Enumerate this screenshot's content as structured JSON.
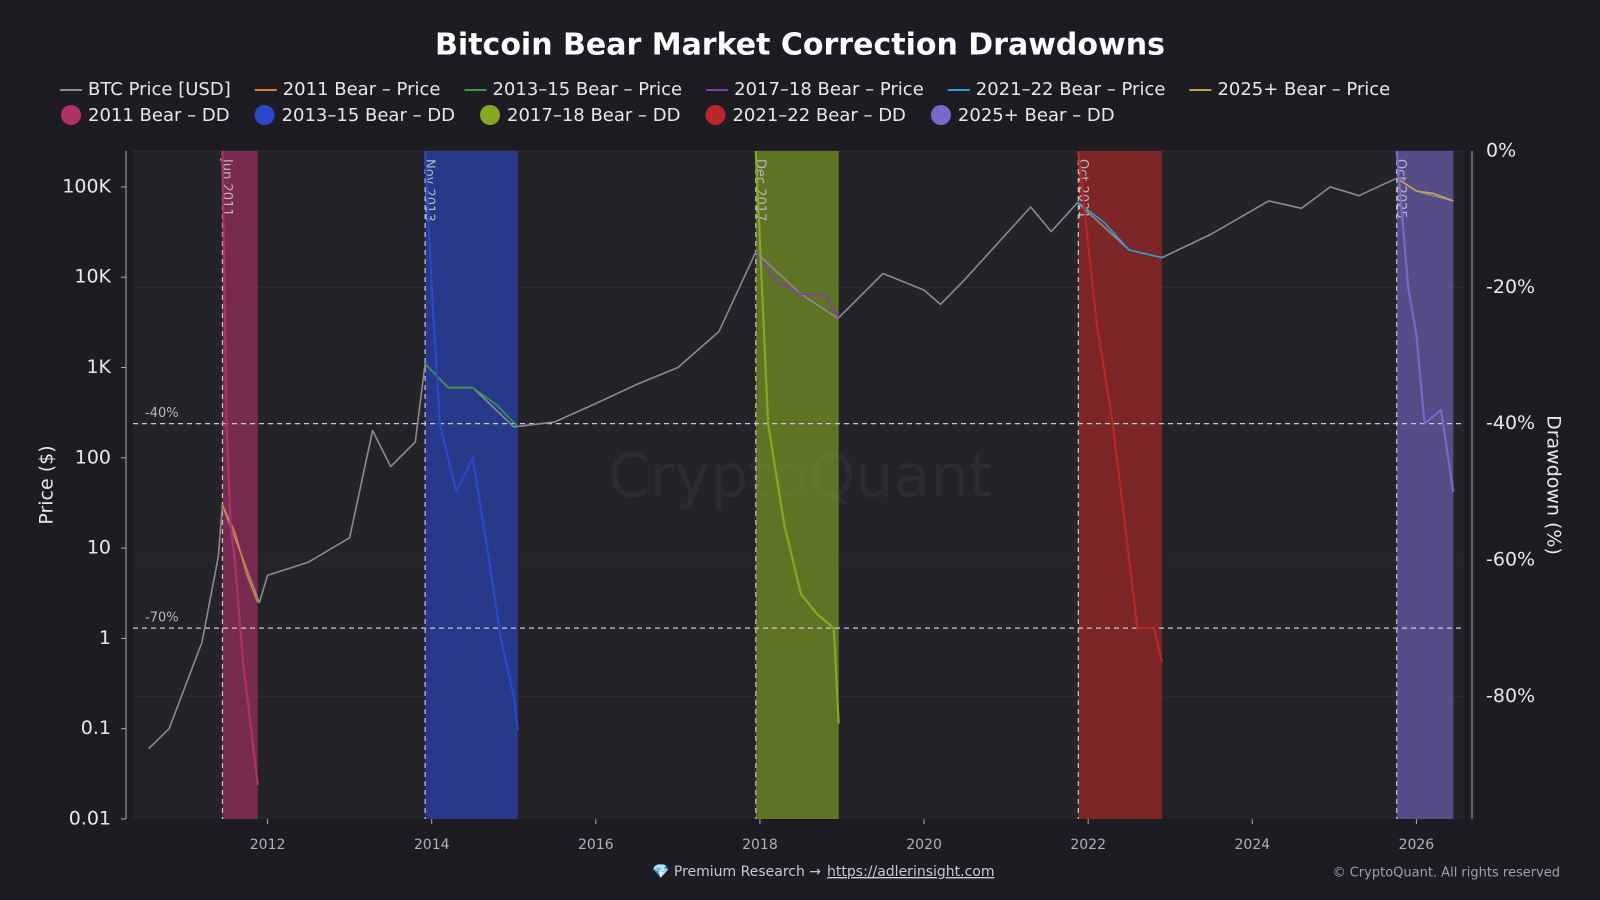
{
  "chart_data": {
    "type": "line",
    "title": "Bitcoin Bear Market Correction Drawdowns",
    "ylabel": "Price ($)",
    "y2label": "Drawdown (%)",
    "log_y": true,
    "grid": true,
    "legend": "top",
    "watermark": "CryptoQuant",
    "xlim": [
      2010.36,
      2026.58
    ],
    "xticks": [
      2012,
      2014,
      2016,
      2018,
      2020,
      2022,
      2024,
      2026
    ],
    "ylim": [
      0.01,
      250000
    ],
    "yticks": [
      {
        "value": 100000,
        "label": "100K"
      },
      {
        "value": 10000,
        "label": "10K"
      },
      {
        "value": 1000,
        "label": "1K"
      },
      100,
      10,
      1,
      0.1,
      0.01
    ],
    "y2lim": [
      -98,
      0
    ],
    "y2ticks": [
      {
        "value": 0,
        "label": "0%"
      },
      {
        "value": -20,
        "label": "-20%"
      },
      {
        "value": -40,
        "label": "-40%"
      },
      {
        "value": -60,
        "label": "-60%"
      },
      {
        "value": -80,
        "label": "-80%"
      }
    ],
    "annotations": [
      {
        "text": "Jun 2011",
        "x": 2011.45
      },
      {
        "text": "Nov 2013",
        "x": 2013.92
      },
      {
        "text": "Dec 2017",
        "x": 2017.95
      },
      {
        "text": "Oct 2021",
        "x": 2021.88
      },
      {
        "text": "Oct 2025",
        "x": 2025.76
      }
    ],
    "hlines": [
      {
        "text": "-40%",
        "value": -40
      },
      {
        "text": "-70%",
        "value": -70
      }
    ],
    "series": [
      {
        "name": "BTC Price [USD]",
        "color": "#8a8a92",
        "x": [
          2010.55,
          2010.8,
          2011.0,
          2011.2,
          2011.4,
          2011.45,
          2011.9,
          2012.0,
          2012.5,
          2013.0,
          2013.28,
          2013.5,
          2013.8,
          2013.92,
          2014.2,
          2014.5,
          2015.0,
          2015.5,
          2016.0,
          2016.5,
          2017.0,
          2017.5,
          2017.95,
          2018.5,
          2018.95,
          2019.5,
          2020.0,
          2020.2,
          2020.5,
          2021.0,
          2021.3,
          2021.55,
          2021.87,
          2022.5,
          2022.9,
          2023.5,
          2024.2,
          2024.6,
          2024.95,
          2025.3,
          2025.76,
          2026.0,
          2026.45
        ],
        "values": [
          0.06,
          0.1,
          0.3,
          0.9,
          8,
          30,
          2.5,
          5,
          7,
          13,
          200,
          80,
          150,
          1100,
          600,
          600,
          220,
          250,
          400,
          650,
          1000,
          2500,
          19000,
          6500,
          3500,
          11000,
          7200,
          5000,
          9500,
          30000,
          60000,
          32000,
          67000,
          20000,
          16500,
          30000,
          70000,
          58000,
          100000,
          80000,
          125000,
          90000,
          70000
        ]
      },
      {
        "name": "2011 Bear – Price",
        "color": "#e07b39",
        "x": [
          2011.45,
          2011.6,
          2011.75,
          2011.88
        ],
        "values": [
          30,
          15,
          5,
          2.5
        ]
      },
      {
        "name": "2013–15 Bear – Price",
        "color": "#3a9a4a",
        "x": [
          2013.92,
          2014.2,
          2014.5,
          2014.8,
          2015.05
        ],
        "values": [
          1100,
          600,
          600,
          380,
          220
        ]
      },
      {
        "name": "2017–18 Bear – Price",
        "color": "#8a3ab0",
        "x": [
          2017.95,
          2018.2,
          2018.5,
          2018.8,
          2018.96
        ],
        "values": [
          19000,
          9000,
          6500,
          6300,
          3500
        ]
      },
      {
        "name": "2021–22 Bear – Price",
        "color": "#2a9fd0",
        "x": [
          2021.88,
          2022.2,
          2022.5,
          2022.9
        ],
        "values": [
          67000,
          40000,
          20000,
          16500
        ]
      },
      {
        "name": "2025+ Bear – Price",
        "color": "#c8a050",
        "x": [
          2025.76,
          2026.0,
          2026.2,
          2026.45
        ],
        "values": [
          125000,
          90000,
          85000,
          70000
        ]
      },
      {
        "name": "2011 Bear – DD",
        "color": "#b0306a",
        "axis": "y2",
        "x": [
          2011.45,
          2011.5,
          2011.55,
          2011.6,
          2011.7,
          2011.8,
          2011.88
        ],
        "values": [
          0,
          -40,
          -55,
          -60,
          -75,
          -85,
          -93
        ]
      },
      {
        "name": "2013–15 Bear – DD",
        "color": "#2a48c8",
        "axis": "y2",
        "x": [
          2013.92,
          2014.0,
          2014.1,
          2014.3,
          2014.5,
          2014.7,
          2014.85,
          2015.0,
          2015.05
        ],
        "values": [
          0,
          -20,
          -40,
          -50,
          -45,
          -60,
          -72,
          -80,
          -85
        ]
      },
      {
        "name": "2017–18 Bear – DD",
        "color": "#86a822",
        "axis": "y2",
        "x": [
          2017.95,
          2018.1,
          2018.3,
          2018.5,
          2018.7,
          2018.9,
          2018.96
        ],
        "values": [
          0,
          -40,
          -55,
          -65,
          -68,
          -70,
          -84
        ]
      },
      {
        "name": "2021–22 Bear – DD",
        "color": "#b82828",
        "axis": "y2",
        "x": [
          2021.88,
          2022.1,
          2022.3,
          2022.45,
          2022.6,
          2022.8,
          2022.9
        ],
        "values": [
          0,
          -25,
          -40,
          -55,
          -70,
          -70,
          -75
        ]
      },
      {
        "name": "2025+ Bear – DD",
        "color": "#7a68c8",
        "axis": "y2",
        "x": [
          2025.76,
          2025.9,
          2026.0,
          2026.1,
          2026.3,
          2026.45
        ],
        "values": [
          0,
          -20,
          -27,
          -40,
          -38,
          -50
        ]
      }
    ]
  },
  "footer": {
    "left": "💎 Premium Research →",
    "link": "https://adlerinsight.com",
    "right": "© CryptoQuant. All rights reserved"
  }
}
